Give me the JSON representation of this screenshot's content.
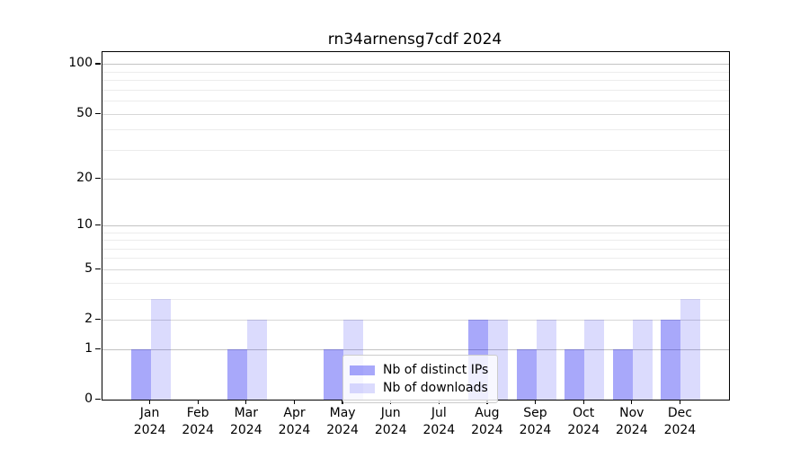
{
  "figure": {
    "title": "rn34arnensg7cdf 2024",
    "background": "#ffffff"
  },
  "chart_data": {
    "type": "bar",
    "title": "rn34arnensg7cdf 2024",
    "xlabel": "",
    "ylabel": "",
    "year": "2024",
    "categories": [
      "Jan 2024",
      "Feb 2024",
      "Mar 2024",
      "Apr 2024",
      "May 2024",
      "Jun 2024",
      "Jul 2024",
      "Aug 2024",
      "Sep 2024",
      "Oct 2024",
      "Nov 2024",
      "Dec 2024"
    ],
    "months": [
      "Jan",
      "Feb",
      "Mar",
      "Apr",
      "May",
      "Jun",
      "Jul",
      "Aug",
      "Sep",
      "Oct",
      "Nov",
      "Dec"
    ],
    "series": [
      {
        "name": "Nb of distinct IPs",
        "color": "rgba(0,0,240,0.34)",
        "hex_on_white": "#a8a8fa",
        "values": [
          1,
          0,
          1,
          0,
          1,
          0,
          0,
          2,
          1,
          1,
          1,
          2
        ]
      },
      {
        "name": "Nb of downloads",
        "color": "rgba(0,0,240,0.14)",
        "hex_on_white": "#dbdbfc",
        "values": [
          3,
          0,
          2,
          0,
          2,
          0,
          0,
          2,
          2,
          2,
          2,
          3
        ]
      }
    ],
    "yscale": "log1p",
    "ylim": [
      0,
      118
    ],
    "y_ticks": [
      0,
      1,
      2,
      5,
      10,
      20,
      50,
      100
    ],
    "y_major_gridlines": [
      1,
      10,
      100
    ],
    "y_minor_gridlines": [
      3,
      4,
      6,
      7,
      8,
      9,
      30,
      40,
      60,
      70,
      80,
      90
    ],
    "grid": true,
    "legend_position": "inside lower-center"
  },
  "colors": {
    "grid_major": "#c3c3c3",
    "grid_labeled": "#d7d7d7",
    "grid_minor": "#ececec",
    "axis": "#000000",
    "legend_border": "#cccccc"
  }
}
